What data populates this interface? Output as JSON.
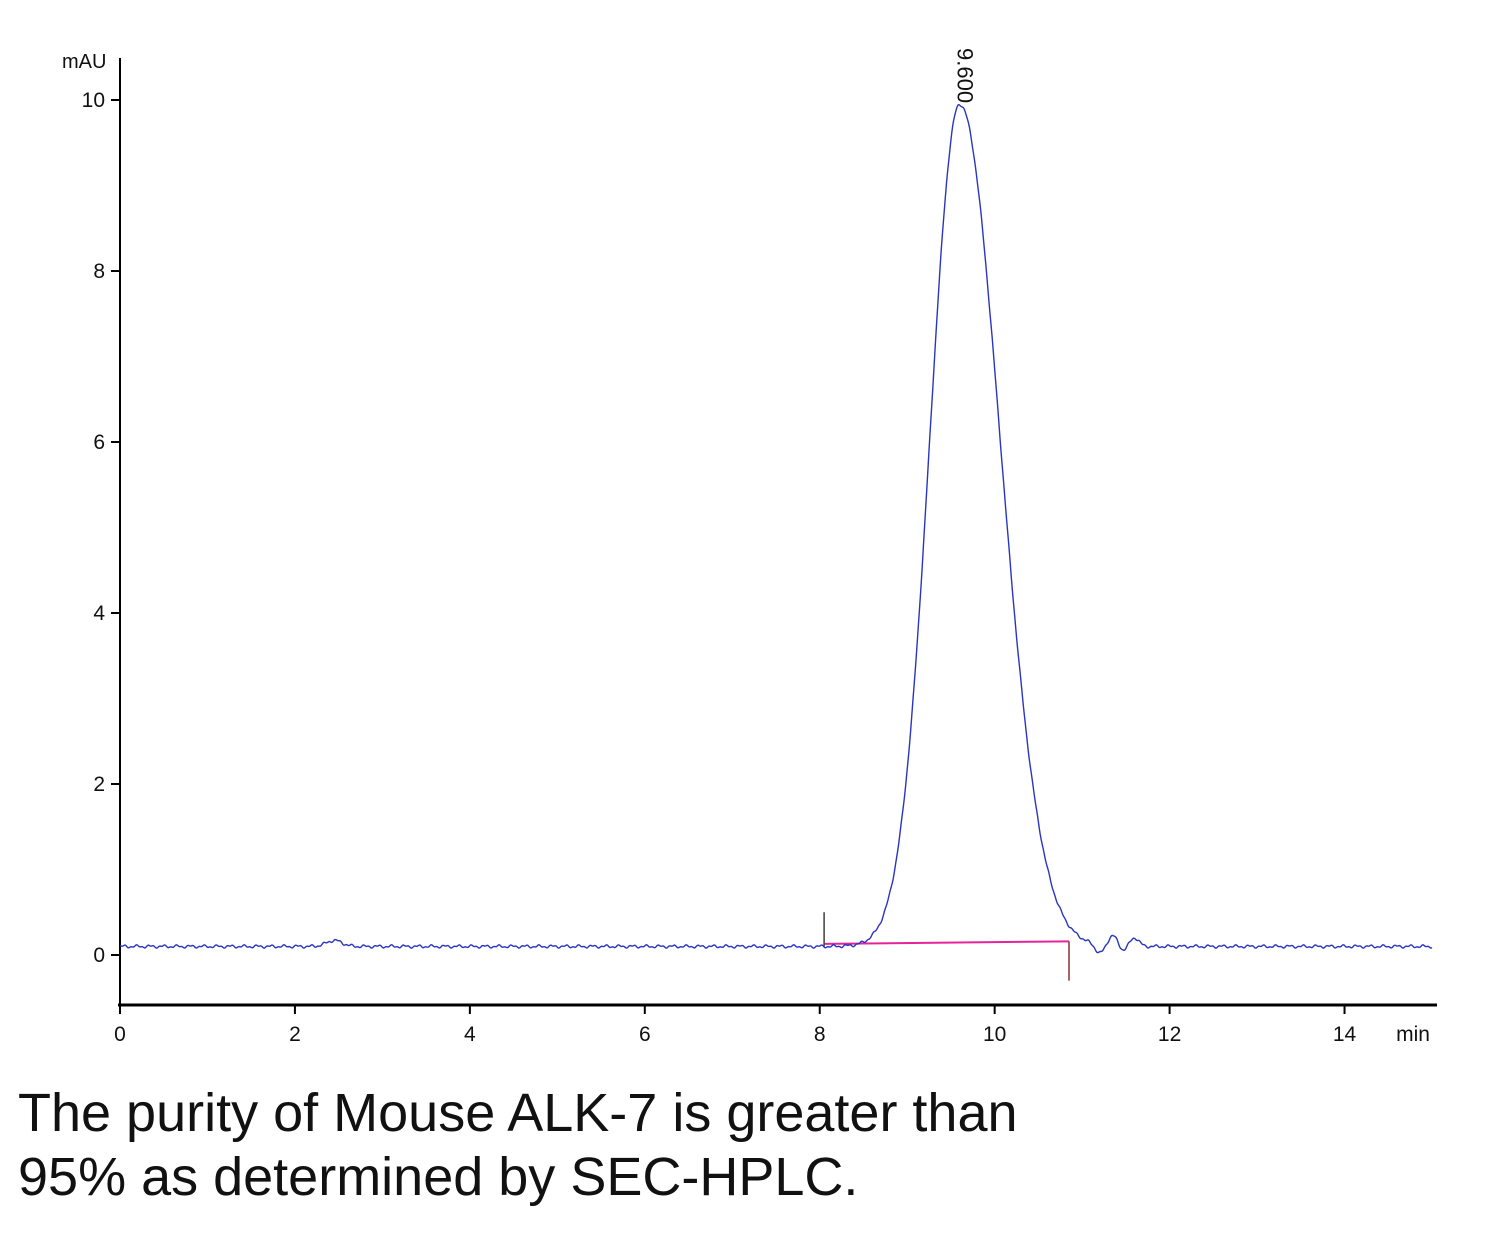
{
  "chart_data": {
    "type": "line",
    "title": "",
    "ylabel": "mAU",
    "xlabel_unit": "min",
    "x_ticks": [
      0,
      2,
      4,
      6,
      8,
      10,
      12,
      14
    ],
    "y_ticks": [
      0,
      2,
      4,
      6,
      8,
      10
    ],
    "xlim": [
      0,
      15
    ],
    "ylim": [
      -0.59,
      10.5
    ],
    "grid": false,
    "legend": "none",
    "baseline_mau": 0.1,
    "trace_color": "#2a35c0",
    "axis_color": "#000000",
    "peak": {
      "retention_time": 9.6,
      "label": "9.600",
      "apex_mau": 9.95,
      "height_above_baseline_mau": 9.85,
      "sigma_left_min": 0.34,
      "sigma_right_min": 0.46
    },
    "minor_features": [
      {
        "name": "baseline-bump",
        "t": 2.45,
        "height": 0.07,
        "sigma": 0.09
      },
      {
        "name": "post-peak-dip",
        "t": 11.2,
        "height": -0.1,
        "sigma": 0.05
      },
      {
        "name": "post-peak-bump",
        "t": 11.35,
        "height": 0.12,
        "sigma": 0.05
      },
      {
        "name": "post-peak-dip-2",
        "t": 11.47,
        "height": -0.05,
        "sigma": 0.04
      },
      {
        "name": "post-peak-bump-2",
        "t": 11.6,
        "height": 0.1,
        "sigma": 0.05
      }
    ],
    "integration": {
      "start_min": 8.05,
      "end_min": 10.85,
      "start_mau": 0.13,
      "end_mau": 0.16,
      "color": "#e6239b"
    },
    "markers": [
      {
        "t": 8.05,
        "v_from": 0.1,
        "v_to": 0.5,
        "color": "#4a4a4a"
      },
      {
        "t": 10.85,
        "v_from": -0.3,
        "v_to": 0.16,
        "color": "#8a4040"
      }
    ]
  },
  "caption": {
    "line1": "The purity of Mouse ALK-7 is greater than",
    "line2": "95% as determined by SEC-HPLC."
  }
}
